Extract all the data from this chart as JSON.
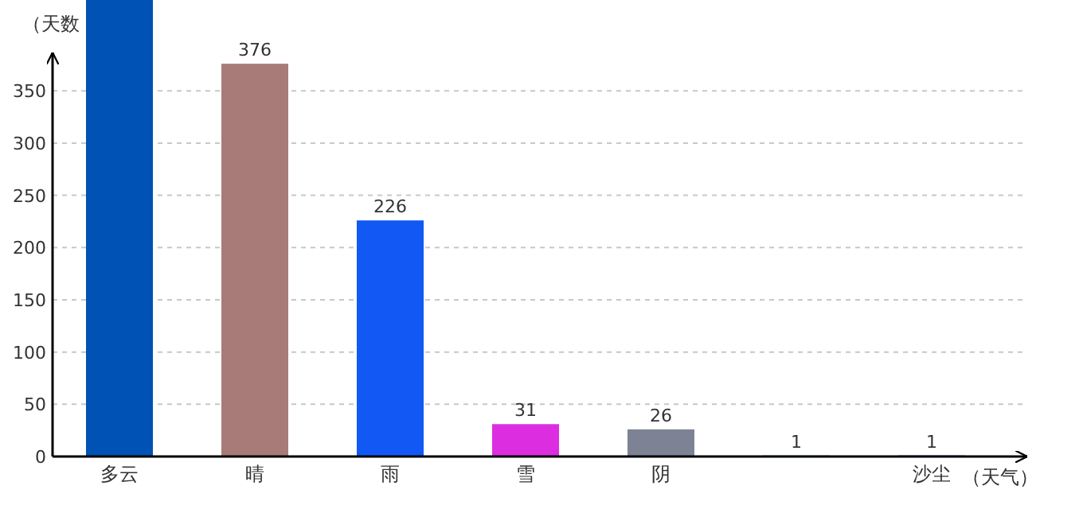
{
  "chart_data": {
    "type": "bar",
    "xlabel": "（天气）",
    "ylabel": "（天数",
    "categories": [
      "多云",
      "晴",
      "雨",
      "雪",
      "阴",
      null,
      "沙尘"
    ],
    "values": [
      437,
      376,
      226,
      31,
      26,
      1,
      1
    ],
    "value_labels": [
      null,
      "376",
      "226",
      "31",
      "26",
      "1",
      "1"
    ],
    "colors": [
      "#0052b4",
      "#a87b78",
      "#1158f5",
      "#dc2ee0",
      "#7d8394",
      "#3cb44b",
      "#3c3cb4"
    ],
    "ylim": [
      0,
      437
    ],
    "yticks": [
      0,
      50,
      100,
      150,
      200,
      250,
      300,
      350
    ],
    "grid": "y"
  }
}
